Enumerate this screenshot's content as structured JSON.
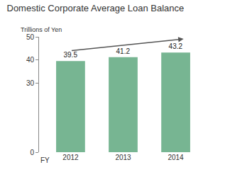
{
  "chart_data": {
    "type": "bar",
    "title": "Domestic Corporate Average Loan Balance",
    "y_label": "Trillions of Yen",
    "x_label": "FY",
    "categories": [
      "2012",
      "2013",
      "2014"
    ],
    "values": [
      39.5,
      41.2,
      43.2
    ],
    "color": "#77b592",
    "ylim": [
      0,
      50
    ],
    "yticks": [
      0,
      30,
      40,
      50
    ],
    "grid": false,
    "data_labels": true
  }
}
